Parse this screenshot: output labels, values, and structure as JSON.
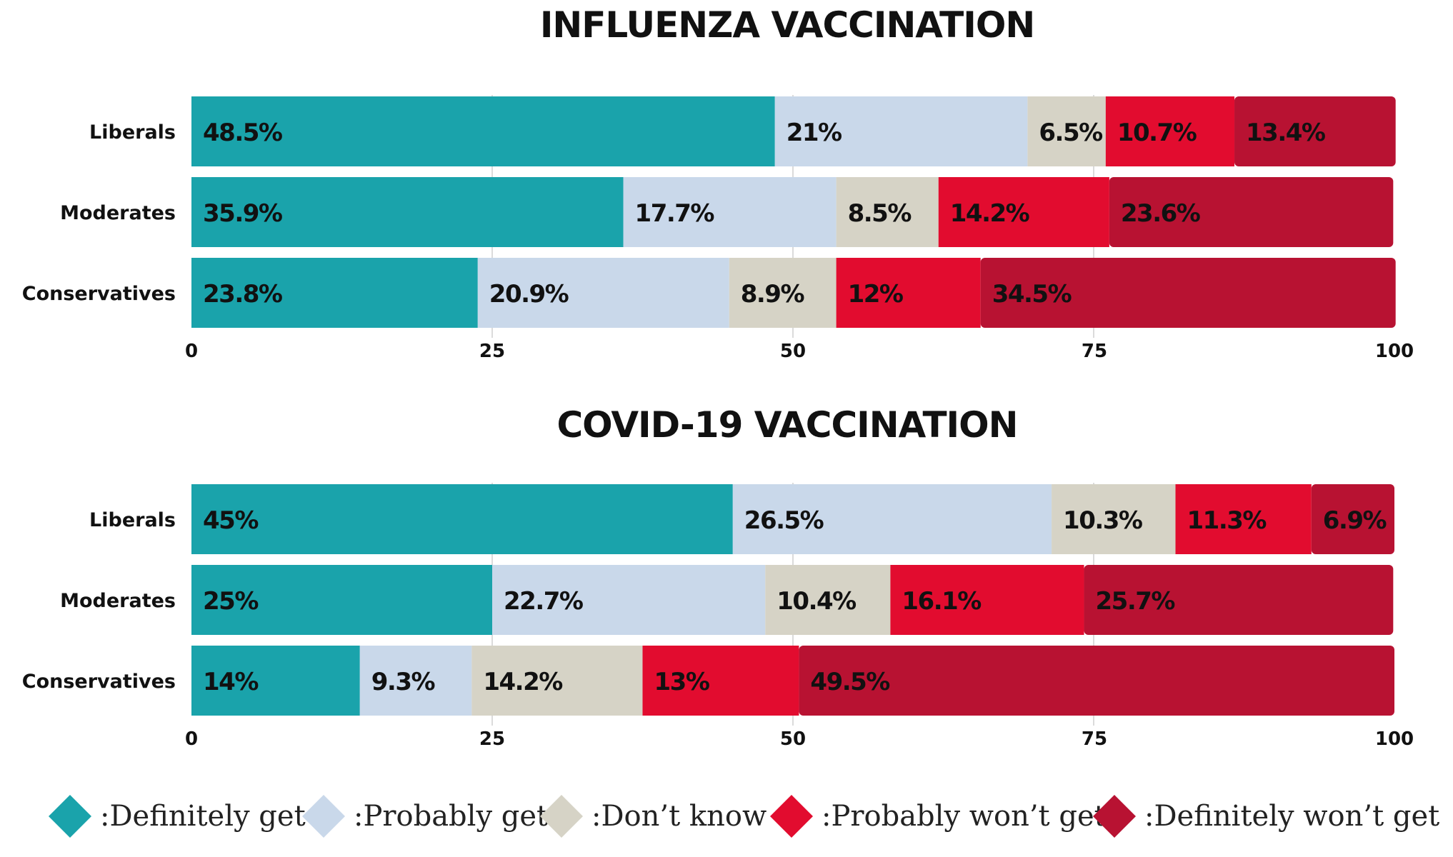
{
  "chart_data": [
    {
      "type": "bar",
      "orientation": "horizontal",
      "stacked": true,
      "title": "INFLUENZA VACCINATION",
      "categories": [
        "Liberals",
        "Moderates",
        "Conservatives"
      ],
      "xlim": [
        0,
        100
      ],
      "ticks": [
        "0",
        "25",
        "50",
        "75",
        "100"
      ],
      "grid": true,
      "series": [
        {
          "name": ":Definitely get",
          "color": "#1aa3ab",
          "values": [
            48.5,
            35.9,
            23.8
          ],
          "labels": [
            "48.5%",
            "35.9%",
            "23.8%"
          ]
        },
        {
          "name": ":Probably get",
          "color": "#c9d8ea",
          "values": [
            21,
            17.7,
            20.9
          ],
          "labels": [
            "21%",
            "17.7%",
            "20.9%"
          ]
        },
        {
          "name": ":Don’t know",
          "color": "#d6d3c6",
          "values": [
            6.5,
            8.5,
            8.9
          ],
          "labels": [
            "6.5%",
            "8.5%",
            "8.9%"
          ]
        },
        {
          "name": ":Probably won’t get",
          "color": "#e20c2f",
          "values": [
            10.7,
            14.2,
            12
          ],
          "labels": [
            "10.7%",
            "14.2%",
            "12%"
          ]
        },
        {
          "name": ":Definitely won’t get",
          "color": "#b81232",
          "values": [
            13.4,
            23.6,
            34.5
          ],
          "labels": [
            "13.4%",
            "23.6%",
            "34.5%"
          ]
        }
      ]
    },
    {
      "type": "bar",
      "orientation": "horizontal",
      "stacked": true,
      "title": "COVID-19 VACCINATION",
      "categories": [
        "Liberals",
        "Moderates",
        "Conservatives"
      ],
      "xlim": [
        0,
        100
      ],
      "ticks": [
        "0",
        "25",
        "50",
        "75",
        "100"
      ],
      "grid": true,
      "series": [
        {
          "name": ":Definitely get",
          "color": "#1aa3ab",
          "values": [
            45,
            25,
            14
          ],
          "labels": [
            "45%",
            "25%",
            "14%"
          ]
        },
        {
          "name": ":Probably get",
          "color": "#c9d8ea",
          "values": [
            26.5,
            22.7,
            9.3
          ],
          "labels": [
            "26.5%",
            "22.7%",
            "9.3%"
          ]
        },
        {
          "name": ":Don’t know",
          "color": "#d6d3c6",
          "values": [
            10.3,
            10.4,
            14.2
          ],
          "labels": [
            "10.3%",
            "10.4%",
            "14.2%"
          ]
        },
        {
          "name": ":Probably won’t get",
          "color": "#e20c2f",
          "values": [
            11.3,
            16.1,
            13
          ],
          "labels": [
            "11.3%",
            "16.1%",
            "13%"
          ]
        },
        {
          "name": ":Definitely won’t get",
          "color": "#b81232",
          "values": [
            6.9,
            25.7,
            49.5
          ],
          "labels": [
            "6.9%",
            "25.7%",
            "49.5%"
          ]
        }
      ]
    }
  ],
  "legend": {
    "placement": "bottom",
    "items": [
      {
        "label": ":Definitely get",
        "color": "#1aa3ab",
        "icon": "diamond-icon"
      },
      {
        "label": ":Probably get",
        "color": "#c9d8ea",
        "icon": "diamond-icon"
      },
      {
        "label": ":Don’t know",
        "color": "#d6d3c6",
        "icon": "diamond-icon"
      },
      {
        "label": ":Probably won’t get",
        "color": "#e20c2f",
        "icon": "diamond-icon"
      },
      {
        "label": ":Definitely won’t get",
        "color": "#b81232",
        "icon": "diamond-icon"
      }
    ]
  }
}
